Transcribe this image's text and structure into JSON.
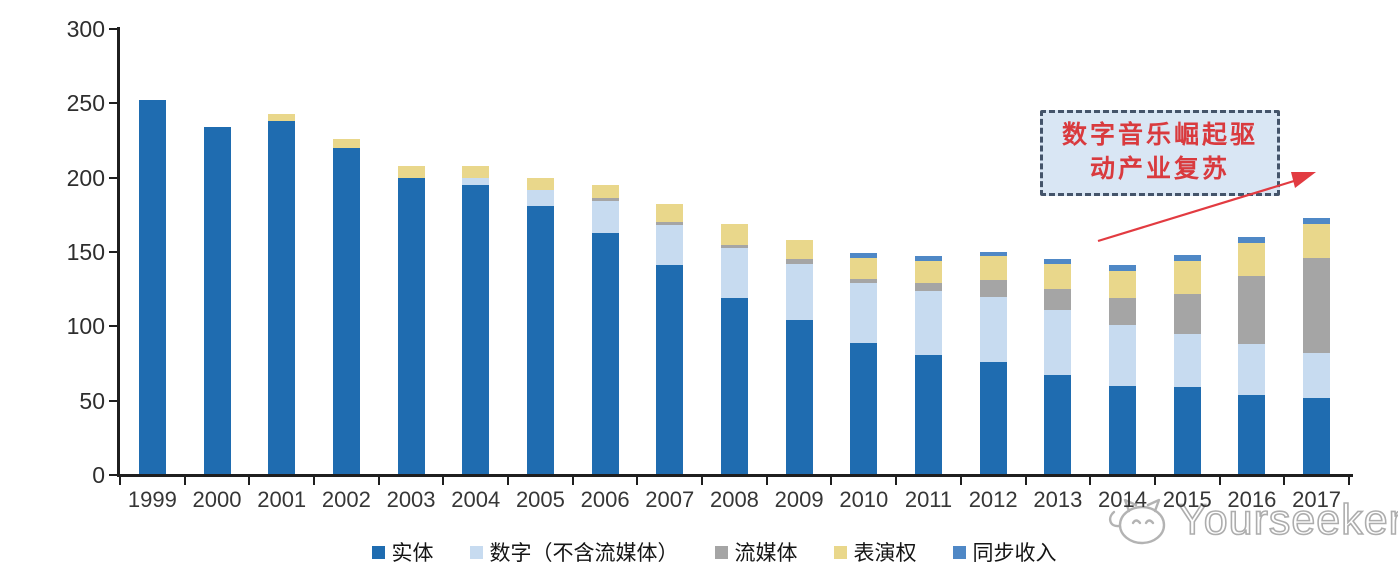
{
  "chart_data": {
    "type": "bar",
    "stacked": true,
    "title": "",
    "xlabel": "",
    "ylabel": "",
    "categories": [
      "1999",
      "2000",
      "2001",
      "2002",
      "2003",
      "2004",
      "2005",
      "2006",
      "2007",
      "2008",
      "2009",
      "2010",
      "2011",
      "2012",
      "2013",
      "2014",
      "2015",
      "2016",
      "2017"
    ],
    "series": [
      {
        "name": "实体",
        "color": "#1f6cb0",
        "values": [
          252,
          234,
          238,
          220,
          200,
          195,
          181,
          163,
          141,
          119,
          104,
          89,
          81,
          76,
          67,
          60,
          59,
          54,
          52
        ]
      },
      {
        "name": "数字（不含流媒体）",
        "color": "#c7dbf0",
        "values": [
          0,
          0,
          0,
          0,
          0,
          5,
          11,
          21,
          27,
          34,
          38,
          40,
          43,
          44,
          44,
          41,
          36,
          34,
          30
        ]
      },
      {
        "name": "流媒体",
        "color": "#a5a5a5",
        "values": [
          0,
          0,
          0,
          0,
          0,
          0,
          0,
          2,
          2,
          2,
          3,
          3,
          5,
          11,
          14,
          18,
          27,
          46,
          64
        ]
      },
      {
        "name": "表演权",
        "color": "#e9d78b",
        "values": [
          0,
          0,
          5,
          6,
          8,
          8,
          8,
          9,
          12,
          14,
          13,
          14,
          15,
          16,
          17,
          18,
          22,
          22,
          23
        ]
      },
      {
        "name": "同步收入",
        "color": "#4f88c6",
        "values": [
          0,
          0,
          0,
          0,
          0,
          0,
          0,
          0,
          0,
          0,
          0,
          3,
          3,
          3,
          3,
          4,
          4,
          4,
          4
        ]
      }
    ],
    "ylim": [
      0,
      300
    ],
    "yticks": [
      0,
      50,
      100,
      150,
      200,
      250,
      300
    ],
    "grid": false,
    "legend_position": "bottom"
  },
  "annotation": {
    "line1": "数字音乐崛起驱",
    "line2": "动产业复苏",
    "text_color": "#d93a3e",
    "border_color": "#44546a",
    "fill_color": "#d9e6f4",
    "arrow_color": "#e23b41"
  },
  "watermark": {
    "text": "Yourseeker"
  }
}
